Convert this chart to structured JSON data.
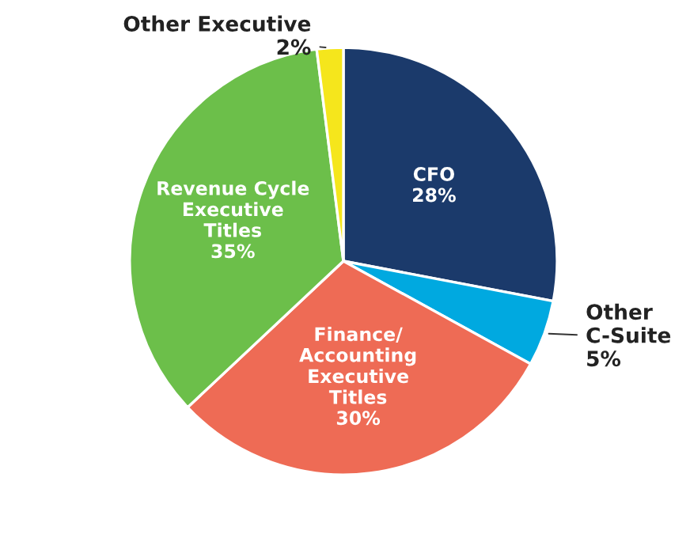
{
  "chart_data": {
    "type": "pie",
    "categories": [
      "CFO",
      "Other\nC-Suite",
      "Finance/\nAccounting\nExecutive\nTitles",
      "Revenue Cycle\nExecutive\nTitles",
      "Other Executive"
    ],
    "values": [
      28,
      5,
      30,
      35,
      2
    ],
    "colors": [
      "#1b3a6b",
      "#00a9e0",
      "#ee6b55",
      "#6cbf4a",
      "#f5e61c"
    ],
    "value_labels": [
      "28%",
      "5%",
      "30%",
      "35%",
      "2%"
    ],
    "legend": false
  }
}
